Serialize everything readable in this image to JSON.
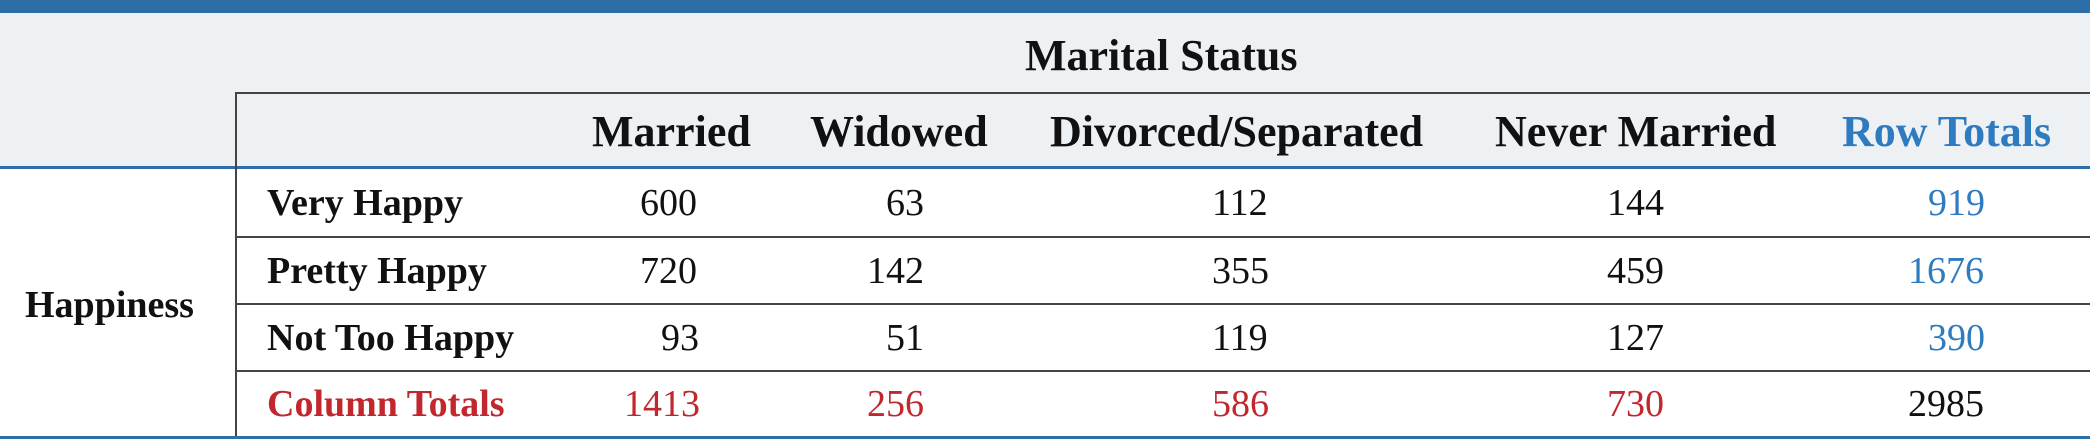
{
  "table": {
    "group_header": "Marital Status",
    "row_group": "Happiness",
    "columns": [
      "Married",
      "Widowed",
      "Divorced/Separated",
      "Never Married",
      "Row Totals"
    ],
    "rows": [
      {
        "label": "Very Happy",
        "values": [
          "600",
          "63",
          "112",
          "144",
          "919"
        ]
      },
      {
        "label": "Pretty Happy",
        "values": [
          "720",
          "142",
          "355",
          "459",
          "1676"
        ]
      },
      {
        "label": "Not Too Happy",
        "values": [
          "93",
          "51",
          "119",
          "127",
          "390"
        ]
      }
    ],
    "totals": {
      "label": "Column Totals",
      "values": [
        "1413",
        "256",
        "586",
        "730",
        "2985"
      ]
    }
  },
  "colors": {
    "accent_blue": "#2e7bbf",
    "totals_red": "#c1272d",
    "header_band": "#eef1f4"
  }
}
